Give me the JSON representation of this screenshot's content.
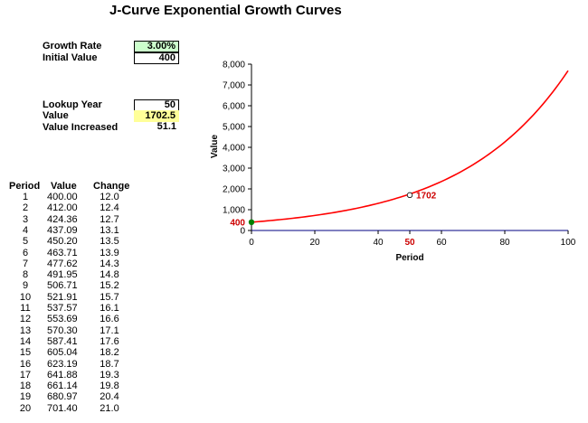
{
  "title": "J-Curve Exponential Growth Curves",
  "inputs": {
    "growth_rate_label": "Growth Rate",
    "growth_rate_value": "3.00%",
    "initial_value_label": "Initial Value",
    "initial_value_value": "400",
    "lookup_year_label": "Lookup Year",
    "lookup_year_value": "50",
    "value_label": "Value",
    "value_value": "1702.5",
    "value_increased_label": "Value Increased",
    "value_increased_value": "51.1"
  },
  "table": {
    "headers": [
      "Period",
      "Value",
      "Change"
    ],
    "rows": [
      [
        "1",
        "400.00",
        "12.0"
      ],
      [
        "2",
        "412.00",
        "12.4"
      ],
      [
        "3",
        "424.36",
        "12.7"
      ],
      [
        "4",
        "437.09",
        "13.1"
      ],
      [
        "5",
        "450.20",
        "13.5"
      ],
      [
        "6",
        "463.71",
        "13.9"
      ],
      [
        "7",
        "477.62",
        "14.3"
      ],
      [
        "8",
        "491.95",
        "14.8"
      ],
      [
        "9",
        "506.71",
        "15.2"
      ],
      [
        "10",
        "521.91",
        "15.7"
      ],
      [
        "11",
        "537.57",
        "16.1"
      ],
      [
        "12",
        "553.69",
        "16.6"
      ],
      [
        "13",
        "570.30",
        "17.1"
      ],
      [
        "14",
        "587.41",
        "17.6"
      ],
      [
        "15",
        "605.04",
        "18.2"
      ],
      [
        "16",
        "623.19",
        "18.7"
      ],
      [
        "17",
        "641.88",
        "19.3"
      ],
      [
        "18",
        "661.14",
        "19.8"
      ],
      [
        "19",
        "680.97",
        "20.4"
      ],
      [
        "20",
        "701.40",
        "21.0"
      ]
    ]
  },
  "chart_data": {
    "type": "line",
    "xlabel": "Period",
    "ylabel": "Value",
    "xlim": [
      0,
      100
    ],
    "ylim": [
      0,
      8000
    ],
    "x_ticks": [
      "0",
      "20",
      "40",
      "50",
      "60",
      "80",
      "100"
    ],
    "y_ticks": [
      "0",
      "1,000",
      "2,000",
      "3,000",
      "4,000",
      "5,000",
      "6,000",
      "7,000",
      "8,000"
    ],
    "series": [
      {
        "growth_rate": 0.03,
        "initial": 400,
        "x_range": [
          0,
          100
        ],
        "color": "#ff0000"
      }
    ],
    "markers": [
      {
        "x": 0,
        "y": 400,
        "label": "400",
        "color": "#008000"
      },
      {
        "x": 50,
        "y": 1702.5,
        "label": "1702",
        "color": "#ffffff"
      }
    ],
    "highlight_tick": {
      "x": 50,
      "label": "50",
      "color": "#cc0000"
    },
    "grid": false
  }
}
